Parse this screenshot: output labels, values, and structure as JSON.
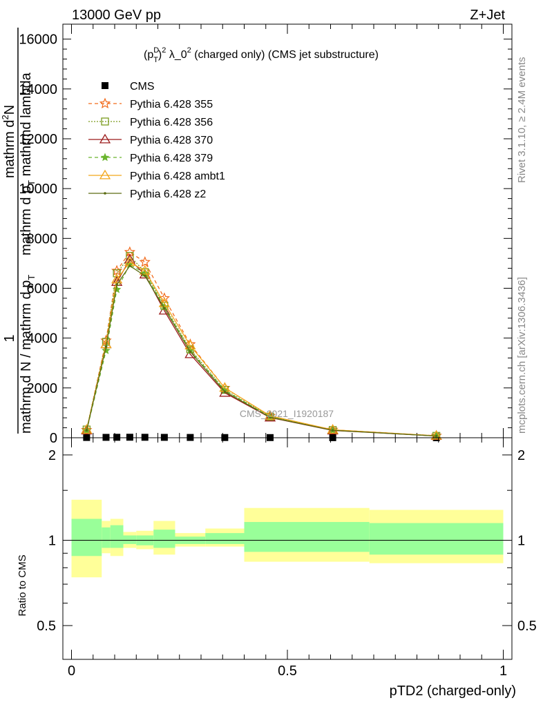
{
  "header": {
    "left": "13000 GeV pp",
    "right": "Z+Jet"
  },
  "side_labels": {
    "rivet": "Rivet 3.1.10, ≥ 2.4M events",
    "mcplots": "mcplots.cern.ch [arXiv:1306.3436]"
  },
  "watermark": "CMS_2021_I1920187",
  "chart_data": [
    {
      "type": "line",
      "title_parts": {
        "p": "p",
        "sup_d": "D",
        "sub_t": "T",
        "sup_2a": "2",
        "lambda": " λ_0",
        "sup_2b": "2",
        "rest": " (charged only) (CMS jet substructure)"
      },
      "ylabel_parts": {
        "numer1": "1",
        "denom1": "mathrm d N / mathrm d p",
        "denom1_sub": "T",
        "numer2": "mathrm d",
        "numer2_sup": "2",
        "numer2_rest": "N",
        "denom2": "mathrm d p",
        "denom2_sub": "T",
        "denom2_rest": " mathrmd lambda"
      },
      "ylim": [
        0,
        16600
      ],
      "yticks": [
        0,
        2000,
        4000,
        6000,
        8000,
        10000,
        12000,
        14000,
        16000
      ],
      "ytick_labels": [
        "0",
        "2000",
        "4000",
        "6000",
        "8000",
        "10000",
        "12000",
        "14000",
        "16000"
      ],
      "xlim": [
        -0.02,
        1.02
      ],
      "grid": false,
      "legend_position": "top-left",
      "x": [
        0.035,
        0.08,
        0.105,
        0.135,
        0.17,
        0.215,
        0.275,
        0.355,
        0.46,
        0.605,
        0.845
      ],
      "series": [
        {
          "name": "CMS",
          "color": "#000000",
          "marker": "square-filled",
          "dash": "none",
          "values": [
            10,
            15,
            18,
            20,
            18,
            15,
            12,
            8,
            6,
            3,
            1
          ]
        },
        {
          "name": "Pythia 6.428 355",
          "color": "#f26a1b",
          "marker": "star",
          "dash": "dashed",
          "values": [
            310,
            3900,
            6700,
            7450,
            7050,
            5600,
            3750,
            2000,
            870,
            320,
            80
          ]
        },
        {
          "name": "Pythia 6.428 356",
          "color": "#7a9a1c",
          "marker": "square-open",
          "dash": "dotted",
          "values": [
            330,
            3850,
            6600,
            7300,
            6650,
            5300,
            3550,
            1920,
            850,
            310,
            75
          ]
        },
        {
          "name": "Pythia 6.428 370",
          "color": "#9c1b1b",
          "marker": "triangle-open",
          "dash": "solid",
          "values": [
            290,
            3750,
            6250,
            7150,
            6550,
            5100,
            3350,
            1800,
            810,
            290,
            70
          ]
        },
        {
          "name": "Pythia 6.428 379",
          "color": "#6ab52e",
          "marker": "star-small",
          "dash": "dashed",
          "values": [
            280,
            3500,
            5950,
            6950,
            6600,
            5250,
            3500,
            1900,
            840,
            300,
            72
          ]
        },
        {
          "name": "Pythia 6.428 ambt1",
          "color": "#f2a619",
          "marker": "triangle-open",
          "dash": "solid",
          "values": [
            320,
            3750,
            6350,
            7050,
            6700,
            5400,
            3700,
            2000,
            880,
            320,
            80
          ]
        },
        {
          "name": "Pythia 6.428 z2",
          "color": "#5a6b12",
          "marker": "dot",
          "dash": "solid",
          "values": [
            300,
            3650,
            6150,
            6900,
            6500,
            5200,
            3450,
            1850,
            820,
            300,
            70
          ]
        }
      ]
    },
    {
      "type": "area",
      "ylabel": "Ratio to CMS",
      "xlabel": "pTD2 (charged-only)",
      "ylim": [
        0.38,
        2.3
      ],
      "yticks": [
        0.5,
        1,
        2
      ],
      "ytick_labels": [
        "0.5",
        "1",
        "2"
      ],
      "xticks": [
        0,
        0.5,
        1
      ],
      "xtick_labels": [
        "0",
        "0.5",
        "1"
      ],
      "xlim": [
        -0.02,
        1.02
      ],
      "bins": [
        0.0,
        0.07,
        0.09,
        0.12,
        0.15,
        0.19,
        0.24,
        0.31,
        0.4,
        0.52,
        0.69,
        1.0
      ],
      "band_outer_low": [
        0.74,
        0.9,
        0.88,
        0.94,
        0.93,
        0.89,
        0.95,
        0.95,
        0.84,
        0.84,
        0.83,
        0.73
      ],
      "band_outer_high": [
        1.39,
        1.17,
        1.19,
        1.07,
        1.08,
        1.17,
        1.06,
        1.1,
        1.3,
        1.3,
        1.28,
        1.37
      ],
      "band_inner_low": [
        0.88,
        0.94,
        0.94,
        0.97,
        0.96,
        0.94,
        0.97,
        0.97,
        0.91,
        0.91,
        0.89,
        0.88
      ],
      "band_inner_high": [
        1.19,
        1.11,
        1.13,
        1.04,
        1.04,
        1.09,
        1.03,
        1.06,
        1.16,
        1.16,
        1.15,
        1.2
      ],
      "outer_color": "#ffff99",
      "inner_color": "#99ff99",
      "reference_value": 1
    }
  ]
}
